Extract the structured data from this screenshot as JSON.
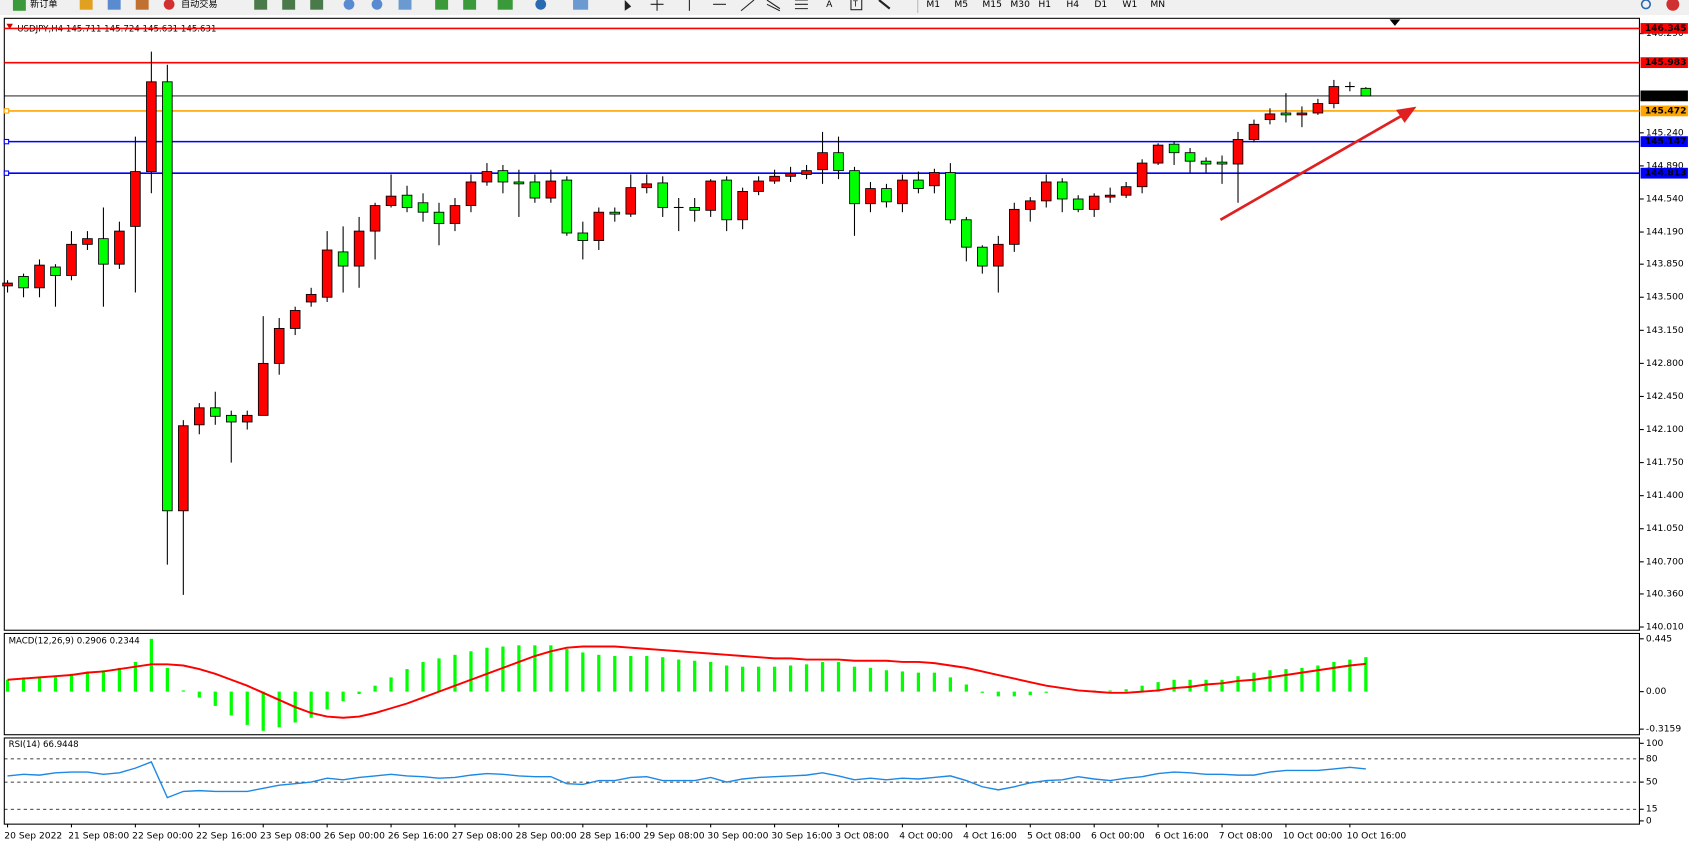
{
  "toolbar": {
    "new_order": "新订单",
    "auto_trading": "自动交易",
    "tools": [
      "A",
      "T"
    ],
    "timeframes": [
      "M1",
      "M5",
      "M15",
      "M30",
      "H1",
      "H4",
      "D1",
      "W1",
      "MN"
    ]
  },
  "chart_data": [
    {
      "type": "candlestick",
      "title": "USDJPY,H4  145.711 145.724 145.631 145.631",
      "up_color": "#ff0000",
      "down_color": "#00ff00",
      "open": [
        143.62,
        143.72,
        143.6,
        143.82,
        143.73,
        144.06,
        144.12,
        143.85,
        144.25,
        144.83,
        145.78,
        141.24,
        142.15,
        142.33,
        142.25,
        142.18,
        142.25,
        142.8,
        143.17,
        143.45,
        143.5,
        143.98,
        143.83,
        144.2,
        144.47,
        144.58,
        144.5,
        144.4,
        144.28,
        144.47,
        144.72,
        144.84,
        144.72,
        144.72,
        144.55,
        144.74,
        144.18,
        144.1,
        144.4,
        144.38,
        144.66,
        144.71,
        144.45,
        144.45,
        144.42,
        144.74,
        144.32,
        144.62,
        144.73,
        144.78,
        144.8,
        144.85,
        145.03,
        144.84,
        144.49,
        144.65,
        144.49,
        144.74,
        144.68,
        144.82,
        144.32,
        144.03,
        143.83,
        144.06,
        144.43,
        144.52,
        144.72,
        144.54,
        144.43,
        144.56,
        144.58,
        144.67,
        144.92,
        145.12,
        145.03,
        144.94,
        144.93,
        144.91,
        145.17,
        145.38,
        145.45,
        145.43,
        145.45,
        145.55,
        145.73,
        145.711
      ],
      "high": [
        143.68,
        143.75,
        143.9,
        143.85,
        144.2,
        144.2,
        144.45,
        144.3,
        145.2,
        146.1,
        145.96,
        142.2,
        142.38,
        142.5,
        142.3,
        142.3,
        143.3,
        143.28,
        143.4,
        143.6,
        144.2,
        144.25,
        144.35,
        144.5,
        144.8,
        144.68,
        144.6,
        144.5,
        144.55,
        144.8,
        144.92,
        144.9,
        144.85,
        144.8,
        144.85,
        144.78,
        144.3,
        144.45,
        144.45,
        144.8,
        144.8,
        144.78,
        144.55,
        144.55,
        144.75,
        144.78,
        144.66,
        144.78,
        144.85,
        144.88,
        144.9,
        145.25,
        145.2,
        144.88,
        144.72,
        144.7,
        144.8,
        144.83,
        144.86,
        144.92,
        144.35,
        144.05,
        144.15,
        144.5,
        144.56,
        144.8,
        144.76,
        144.58,
        144.6,
        144.66,
        144.72,
        144.96,
        145.13,
        145.15,
        145.08,
        144.98,
        145.0,
        145.25,
        145.38,
        145.5,
        145.66,
        145.52,
        145.6,
        145.8,
        145.78,
        145.724
      ],
      "low": [
        143.55,
        143.5,
        143.5,
        143.4,
        143.68,
        144.0,
        143.4,
        143.8,
        143.55,
        144.6,
        140.67,
        140.35,
        142.05,
        142.15,
        141.75,
        142.1,
        142.25,
        142.68,
        143.1,
        143.4,
        143.45,
        143.55,
        143.6,
        143.9,
        144.45,
        144.4,
        144.3,
        144.05,
        144.2,
        144.4,
        144.68,
        144.6,
        144.35,
        144.5,
        144.5,
        144.15,
        143.9,
        144.0,
        144.3,
        144.35,
        144.6,
        144.35,
        144.2,
        144.3,
        144.35,
        144.2,
        144.22,
        144.58,
        144.7,
        144.72,
        144.75,
        144.7,
        144.75,
        144.15,
        144.4,
        144.45,
        144.4,
        144.6,
        144.6,
        144.28,
        143.88,
        143.75,
        143.55,
        143.98,
        144.3,
        144.45,
        144.4,
        144.4,
        144.35,
        144.5,
        144.55,
        144.6,
        144.9,
        144.9,
        144.82,
        144.82,
        144.7,
        144.5,
        145.14,
        145.33,
        145.35,
        145.3,
        145.43,
        145.5,
        145.68,
        145.631
      ],
      "close": [
        143.65,
        143.6,
        143.84,
        143.73,
        144.06,
        144.12,
        143.85,
        144.2,
        144.83,
        145.78,
        141.24,
        142.14,
        142.33,
        142.24,
        142.18,
        142.25,
        142.8,
        143.17,
        143.36,
        143.53,
        144.0,
        143.83,
        144.2,
        144.47,
        144.57,
        144.45,
        144.4,
        144.28,
        144.47,
        144.72,
        144.83,
        144.72,
        144.7,
        144.55,
        144.73,
        144.18,
        144.1,
        144.4,
        144.38,
        144.66,
        144.7,
        144.45,
        144.44,
        144.42,
        144.73,
        144.32,
        144.62,
        144.73,
        144.78,
        144.81,
        144.84,
        145.03,
        144.84,
        144.49,
        144.65,
        144.51,
        144.74,
        144.65,
        144.82,
        144.32,
        144.03,
        143.83,
        144.06,
        144.43,
        144.52,
        144.72,
        144.54,
        144.43,
        144.57,
        144.58,
        144.67,
        144.92,
        145.11,
        145.03,
        144.94,
        144.91,
        144.91,
        145.17,
        145.33,
        145.44,
        145.43,
        145.45,
        145.55,
        145.73,
        145.73,
        145.631
      ],
      "x_labels": [
        "20 Sep 2022",
        "21 Sep 08:00",
        "22 Sep 00:00",
        "22 Sep 16:00",
        "23 Sep 08:00",
        "26 Sep 00:00",
        "26 Sep 16:00",
        "27 Sep 08:00",
        "28 Sep 00:00",
        "28 Sep 16:00",
        "29 Sep 08:00",
        "30 Sep 00:00",
        "30 Sep 16:00",
        "3 Oct 08:00",
        "4 Oct 00:00",
        "4 Oct 16:00",
        "5 Oct 08:00",
        "6 Oct 00:00",
        "6 Oct 16:00",
        "7 Oct 08:00",
        "10 Oct 00:00",
        "10 Oct 16:00"
      ],
      "ylim": [
        139.976,
        146.452
      ],
      "yticks": [
        {
          "value": 146.29,
          "label": "146.290"
        },
        {
          "value": 145.24,
          "label": "145.240"
        },
        {
          "value": 144.89,
          "label": "144.890"
        },
        {
          "value": 144.54,
          "label": "144.540"
        },
        {
          "value": 144.19,
          "label": "144.190"
        },
        {
          "value": 143.85,
          "label": "143.850"
        },
        {
          "value": 143.5,
          "label": "143.500"
        },
        {
          "value": 143.15,
          "label": "143.150"
        },
        {
          "value": 142.8,
          "label": "142.800"
        },
        {
          "value": 142.45,
          "label": "142.450"
        },
        {
          "value": 142.1,
          "label": "142.100"
        },
        {
          "value": 141.75,
          "label": "141.750"
        },
        {
          "value": 141.4,
          "label": "141.400"
        },
        {
          "value": 141.05,
          "label": "141.050"
        },
        {
          "value": 140.7,
          "label": "140.700"
        },
        {
          "value": 140.36,
          "label": "140.360"
        },
        {
          "value": 140.01,
          "label": "140.010"
        }
      ],
      "levels": [
        {
          "value": 146.345,
          "color": "#ff0000"
        },
        {
          "value": 145.983,
          "color": "#ff0000"
        },
        {
          "value": 145.631,
          "color": "#000000"
        },
        {
          "value": 145.472,
          "color": "#ffa500"
        },
        {
          "value": 145.147,
          "color": "#0000ff"
        },
        {
          "value": 144.813,
          "color": "#0000ff"
        }
      ]
    },
    {
      "type": "macd",
      "title": "MACD(12,26,9) 0.2906 0.2344",
      "color": "#00ff00",
      "signal_color": "#ff0000",
      "values": [
        0.1,
        0.12,
        0.12,
        0.13,
        0.15,
        0.17,
        0.18,
        0.2,
        0.25,
        0.445,
        0.2,
        0.01,
        -0.05,
        -0.12,
        -0.2,
        -0.28,
        -0.33,
        -0.3,
        -0.26,
        -0.22,
        -0.15,
        -0.08,
        -0.02,
        0.05,
        0.12,
        0.19,
        0.25,
        0.28,
        0.31,
        0.34,
        0.37,
        0.38,
        0.39,
        0.39,
        0.39,
        0.36,
        0.33,
        0.31,
        0.3,
        0.3,
        0.3,
        0.29,
        0.27,
        0.26,
        0.25,
        0.22,
        0.21,
        0.21,
        0.21,
        0.22,
        0.23,
        0.25,
        0.25,
        0.21,
        0.2,
        0.18,
        0.17,
        0.16,
        0.16,
        0.12,
        0.06,
        -0.01,
        -0.04,
        -0.04,
        -0.03,
        -0.01,
        0.0,
        0.0,
        0.01,
        0.01,
        0.02,
        0.05,
        0.08,
        0.1,
        0.1,
        0.1,
        0.1,
        0.13,
        0.16,
        0.18,
        0.19,
        0.2,
        0.22,
        0.25,
        0.27,
        0.2906
      ],
      "signal": [
        0.1,
        0.11,
        0.12,
        0.13,
        0.14,
        0.16,
        0.17,
        0.19,
        0.21,
        0.23,
        0.23,
        0.22,
        0.19,
        0.15,
        0.1,
        0.05,
        -0.01,
        -0.07,
        -0.13,
        -0.18,
        -0.21,
        -0.22,
        -0.21,
        -0.18,
        -0.14,
        -0.1,
        -0.05,
        0.0,
        0.05,
        0.1,
        0.15,
        0.2,
        0.25,
        0.3,
        0.34,
        0.37,
        0.38,
        0.38,
        0.38,
        0.37,
        0.36,
        0.35,
        0.34,
        0.33,
        0.32,
        0.31,
        0.3,
        0.29,
        0.28,
        0.28,
        0.27,
        0.27,
        0.27,
        0.26,
        0.26,
        0.26,
        0.25,
        0.25,
        0.24,
        0.22,
        0.2,
        0.17,
        0.14,
        0.11,
        0.08,
        0.05,
        0.03,
        0.01,
        0.0,
        -0.01,
        -0.01,
        0.0,
        0.01,
        0.03,
        0.04,
        0.06,
        0.07,
        0.09,
        0.1,
        0.12,
        0.14,
        0.16,
        0.18,
        0.2,
        0.22,
        0.2344
      ],
      "ylim": [
        -0.363,
        0.49
      ],
      "yticks": [
        0.445,
        {
          "value": 0,
          "label": "0.00"
        },
        -0.3159
      ]
    },
    {
      "type": "line",
      "title": "RSI(14) 66.9448",
      "color": "#1e88e5",
      "values": [
        58,
        60,
        59,
        62,
        63,
        63,
        60,
        62,
        68,
        76,
        30,
        38,
        39,
        38,
        38,
        38,
        42,
        46,
        48,
        50,
        55,
        53,
        56,
        58,
        60,
        58,
        57,
        55,
        56,
        59,
        61,
        60,
        58,
        57,
        57,
        48,
        47,
        52,
        52,
        56,
        57,
        52,
        52,
        52,
        56,
        50,
        54,
        56,
        57,
        58,
        59,
        62,
        58,
        53,
        55,
        53,
        55,
        54,
        56,
        58,
        52,
        44,
        40,
        44,
        49,
        52,
        53,
        57,
        54,
        52,
        55,
        57,
        61,
        63,
        62,
        60,
        60,
        59,
        59,
        63,
        65,
        65,
        65,
        67,
        69,
        66.9448
      ],
      "ylim": [
        -4.2,
        106.9
      ],
      "yticks": [
        100,
        80,
        50,
        15,
        0
      ],
      "levels": [
        80,
        50,
        15
      ]
    }
  ]
}
